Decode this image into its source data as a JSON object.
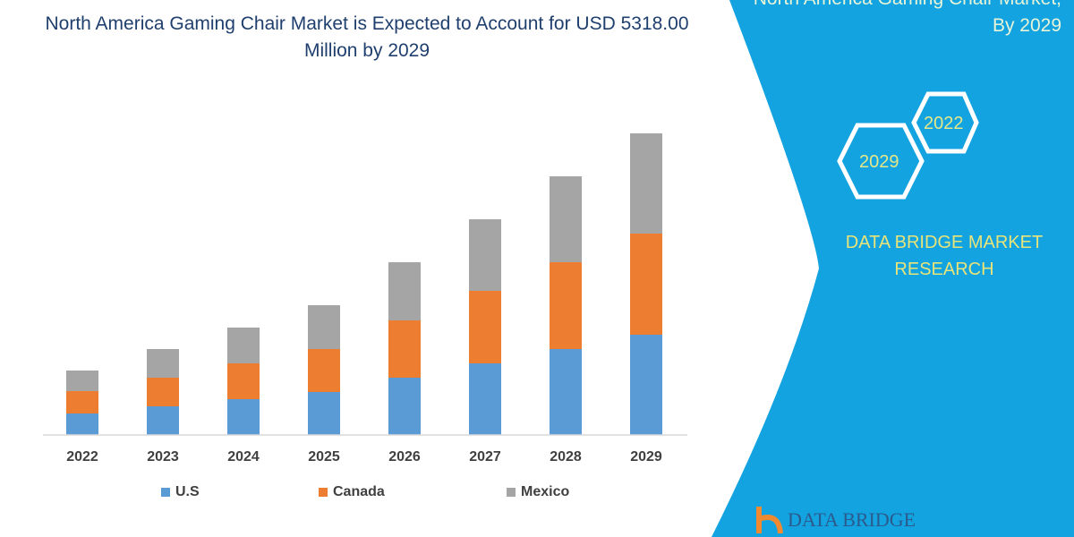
{
  "title": "North America Gaming Chair Market is Expected to Account for USD 5318.00 Million by 2029",
  "side_panel": {
    "title_line1": "North America Gaming Chair Market,",
    "title_line2": "By 2029",
    "hex_years": [
      "2029",
      "2022"
    ],
    "brand": "DATA BRIDGE MARKET RESEARCH",
    "logo_text": "DATA BRIDGE",
    "panel_color": "#12a3e0"
  },
  "chart_data": {
    "type": "bar",
    "stacked": true,
    "title": "North America Gaming Chair Market is Expected to Account for USD 5318.00 Million by 2029",
    "categories": [
      "2022",
      "2023",
      "2024",
      "2025",
      "2026",
      "2027",
      "2028",
      "2029"
    ],
    "series": [
      {
        "name": "U.S",
        "color": "#5b9bd5",
        "values": [
          24,
          32,
          40,
          48,
          64,
          80,
          96,
          112
        ]
      },
      {
        "name": "Canada",
        "color": "#ed7d31",
        "values": [
          25,
          32,
          40,
          48,
          64,
          81,
          97,
          113
        ]
      },
      {
        "name": "Mexico",
        "color": "#a5a5a5",
        "values": [
          23,
          32,
          40,
          49,
          65,
          80,
          96,
          112
        ]
      }
    ],
    "xlabel": "",
    "ylabel": "",
    "y_axis_shown": false,
    "grid": false,
    "legend": "bottom"
  }
}
